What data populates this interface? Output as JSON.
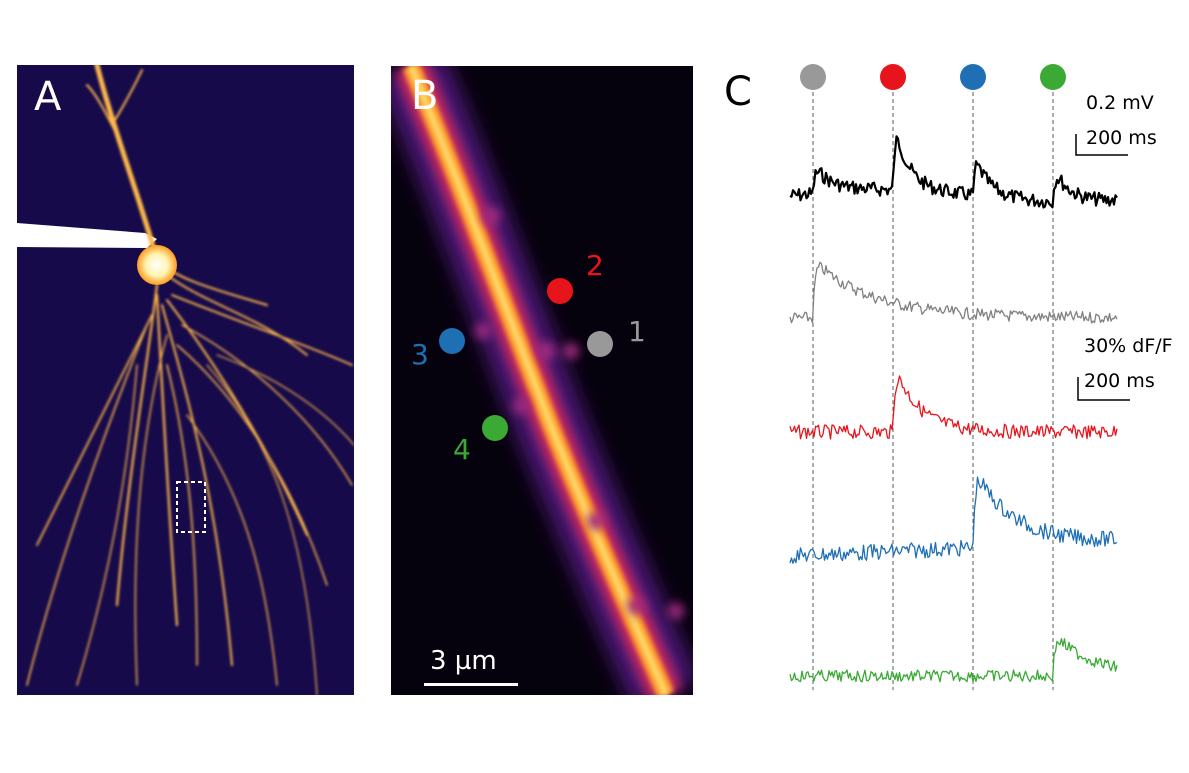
{
  "panels": {
    "a": {
      "letter": "A"
    },
    "b": {
      "letter": "B",
      "scale_bar": "3 µm"
    },
    "c": {
      "letter": "C"
    }
  },
  "spots": [
    {
      "number": "1",
      "color": "#999999",
      "name": "grey"
    },
    {
      "number": "2",
      "color": "#e8141c",
      "name": "red"
    },
    {
      "number": "3",
      "color": "#1f6fb5",
      "name": "blue"
    },
    {
      "number": "4",
      "color": "#3aaa35",
      "name": "green"
    }
  ],
  "scale_bars": {
    "voltage": {
      "amplitude": "0.2 mV",
      "time": "200 ms"
    },
    "calcium": {
      "amplitude": "30% dF/F",
      "time": "200 ms"
    }
  },
  "traces": [
    {
      "name": "voltage",
      "color": "#000000"
    },
    {
      "name": "spot-1-calcium",
      "color": "#808080"
    },
    {
      "name": "spot-2-calcium",
      "color": "#e8141c"
    },
    {
      "name": "spot-3-calcium",
      "color": "#1f6fb5"
    },
    {
      "name": "spot-4-calcium",
      "color": "#3aaa35"
    }
  ]
}
